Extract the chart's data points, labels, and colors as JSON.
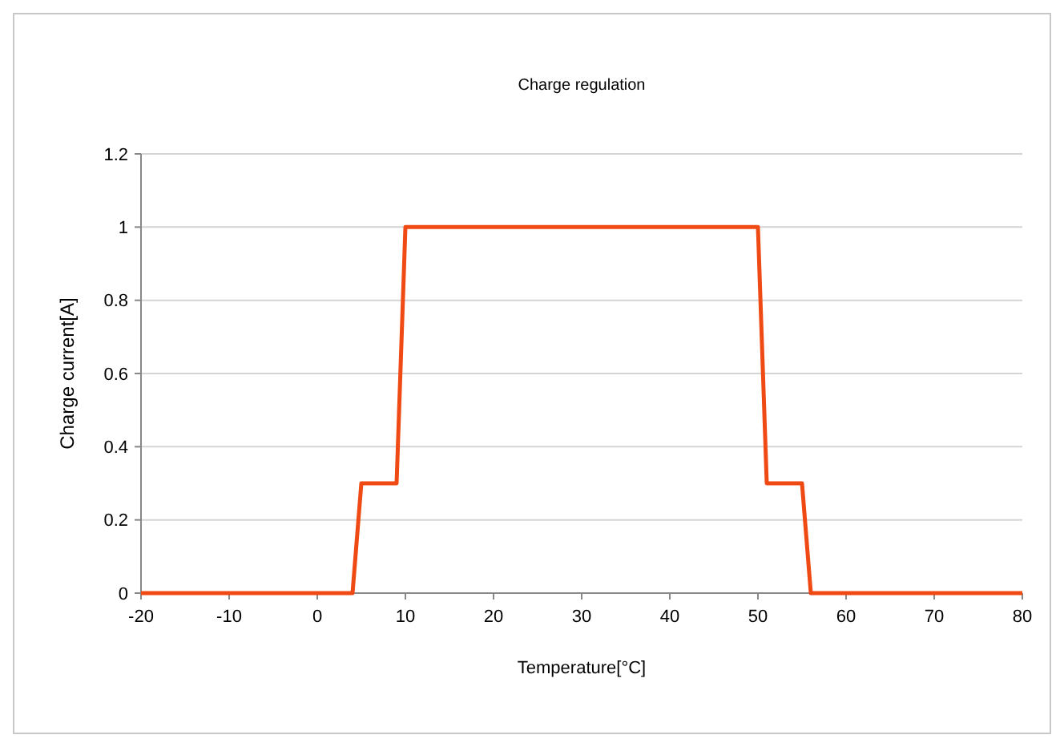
{
  "chart_data": {
    "type": "line",
    "title": "Charge regulation",
    "xlabel": "Temperature[°C]",
    "ylabel": "Charge current[A]",
    "x": [
      -20,
      4,
      5,
      9,
      10,
      50,
      51,
      55,
      56,
      80
    ],
    "series": [
      {
        "color": "#f04a14",
        "values": [
          0,
          0,
          0.3,
          0.3,
          1,
          1,
          0.3,
          0.3,
          0,
          0
        ]
      }
    ],
    "xlim": [
      -20,
      80
    ],
    "xticks": [
      -20,
      -10,
      0,
      10,
      20,
      30,
      40,
      50,
      60,
      70,
      80
    ],
    "ylim": [
      0,
      1.2
    ],
    "yticks": [
      0,
      0.2,
      0.4,
      0.6,
      0.8,
      1,
      1.2
    ],
    "grid": "y",
    "marker": "none",
    "line_style": "solid"
  }
}
